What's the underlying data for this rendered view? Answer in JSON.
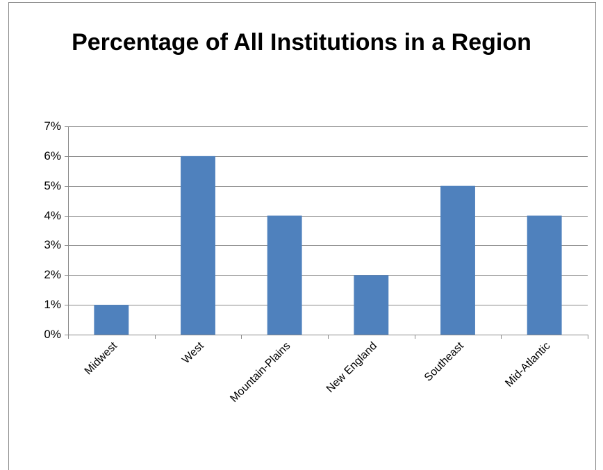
{
  "chart_data": {
    "type": "bar",
    "title": "Percentage of All Institutions in a Region",
    "categories": [
      "Midwest",
      "West",
      "Mountain-Plains",
      "New England",
      "Southeast",
      "Mid-Atlantic"
    ],
    "values": [
      1,
      6,
      4,
      2,
      5,
      4
    ],
    "color": "#4f81bd",
    "ylim": [
      0,
      7
    ],
    "yticks": [
      {
        "value": 0,
        "label": "0%"
      },
      {
        "value": 1,
        "label": "1%"
      },
      {
        "value": 2,
        "label": "2%"
      },
      {
        "value": 3,
        "label": "3%"
      },
      {
        "value": 4,
        "label": "4%"
      },
      {
        "value": 5,
        "label": "5%"
      },
      {
        "value": 6,
        "label": "6%"
      },
      {
        "value": 7,
        "label": "7%"
      }
    ],
    "grid": true
  }
}
